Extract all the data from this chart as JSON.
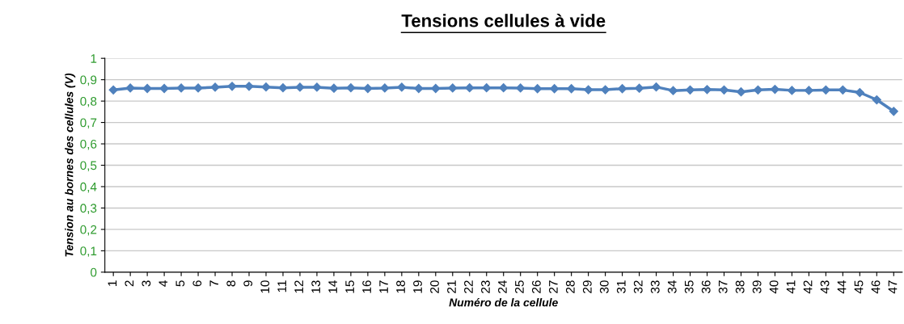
{
  "chart_data": {
    "type": "line",
    "title": "Tensions cellules à vide",
    "xlabel": "Numéro de la cellule",
    "ylabel": "Tension au bornes des cellules (V)",
    "categories": [
      "1",
      "2",
      "3",
      "4",
      "5",
      "6",
      "7",
      "8",
      "9",
      "10",
      "11",
      "12",
      "13",
      "14",
      "15",
      "16",
      "17",
      "18",
      "19",
      "20",
      "21",
      "22",
      "23",
      "24",
      "25",
      "26",
      "27",
      "28",
      "29",
      "30",
      "31",
      "32",
      "33",
      "34",
      "35",
      "36",
      "37",
      "38",
      "39",
      "40",
      "41",
      "42",
      "43",
      "44",
      "45",
      "46",
      "47"
    ],
    "series": [
      {
        "color": "#4f81bd",
        "values": [
          0.852,
          0.861,
          0.859,
          0.859,
          0.861,
          0.861,
          0.865,
          0.869,
          0.869,
          0.866,
          0.862,
          0.865,
          0.865,
          0.86,
          0.862,
          0.859,
          0.861,
          0.865,
          0.859,
          0.859,
          0.861,
          0.862,
          0.862,
          0.862,
          0.861,
          0.858,
          0.858,
          0.858,
          0.853,
          0.853,
          0.858,
          0.86,
          0.866,
          0.849,
          0.852,
          0.854,
          0.852,
          0.843,
          0.852,
          0.855,
          0.85,
          0.85,
          0.852,
          0.852,
          0.84,
          0.806,
          0.752
        ]
      }
    ],
    "ylim": [
      0,
      1
    ],
    "yticks": [
      {
        "value": 0,
        "label": "0"
      },
      {
        "value": 0.1,
        "label": "0,1"
      },
      {
        "value": 0.2,
        "label": "0,2"
      },
      {
        "value": 0.3,
        "label": "0,3"
      },
      {
        "value": 0.4,
        "label": "0,4"
      },
      {
        "value": 0.5,
        "label": "0,5"
      },
      {
        "value": 0.6,
        "label": "0,6"
      },
      {
        "value": 0.7,
        "label": "0,7"
      },
      {
        "value": 0.8,
        "label": "0,8"
      },
      {
        "value": 0.9,
        "label": "0,9"
      },
      {
        "value": 1,
        "label": "1"
      }
    ],
    "grid": "y",
    "marker": "diamond",
    "line_style": "solid",
    "legend": false
  }
}
